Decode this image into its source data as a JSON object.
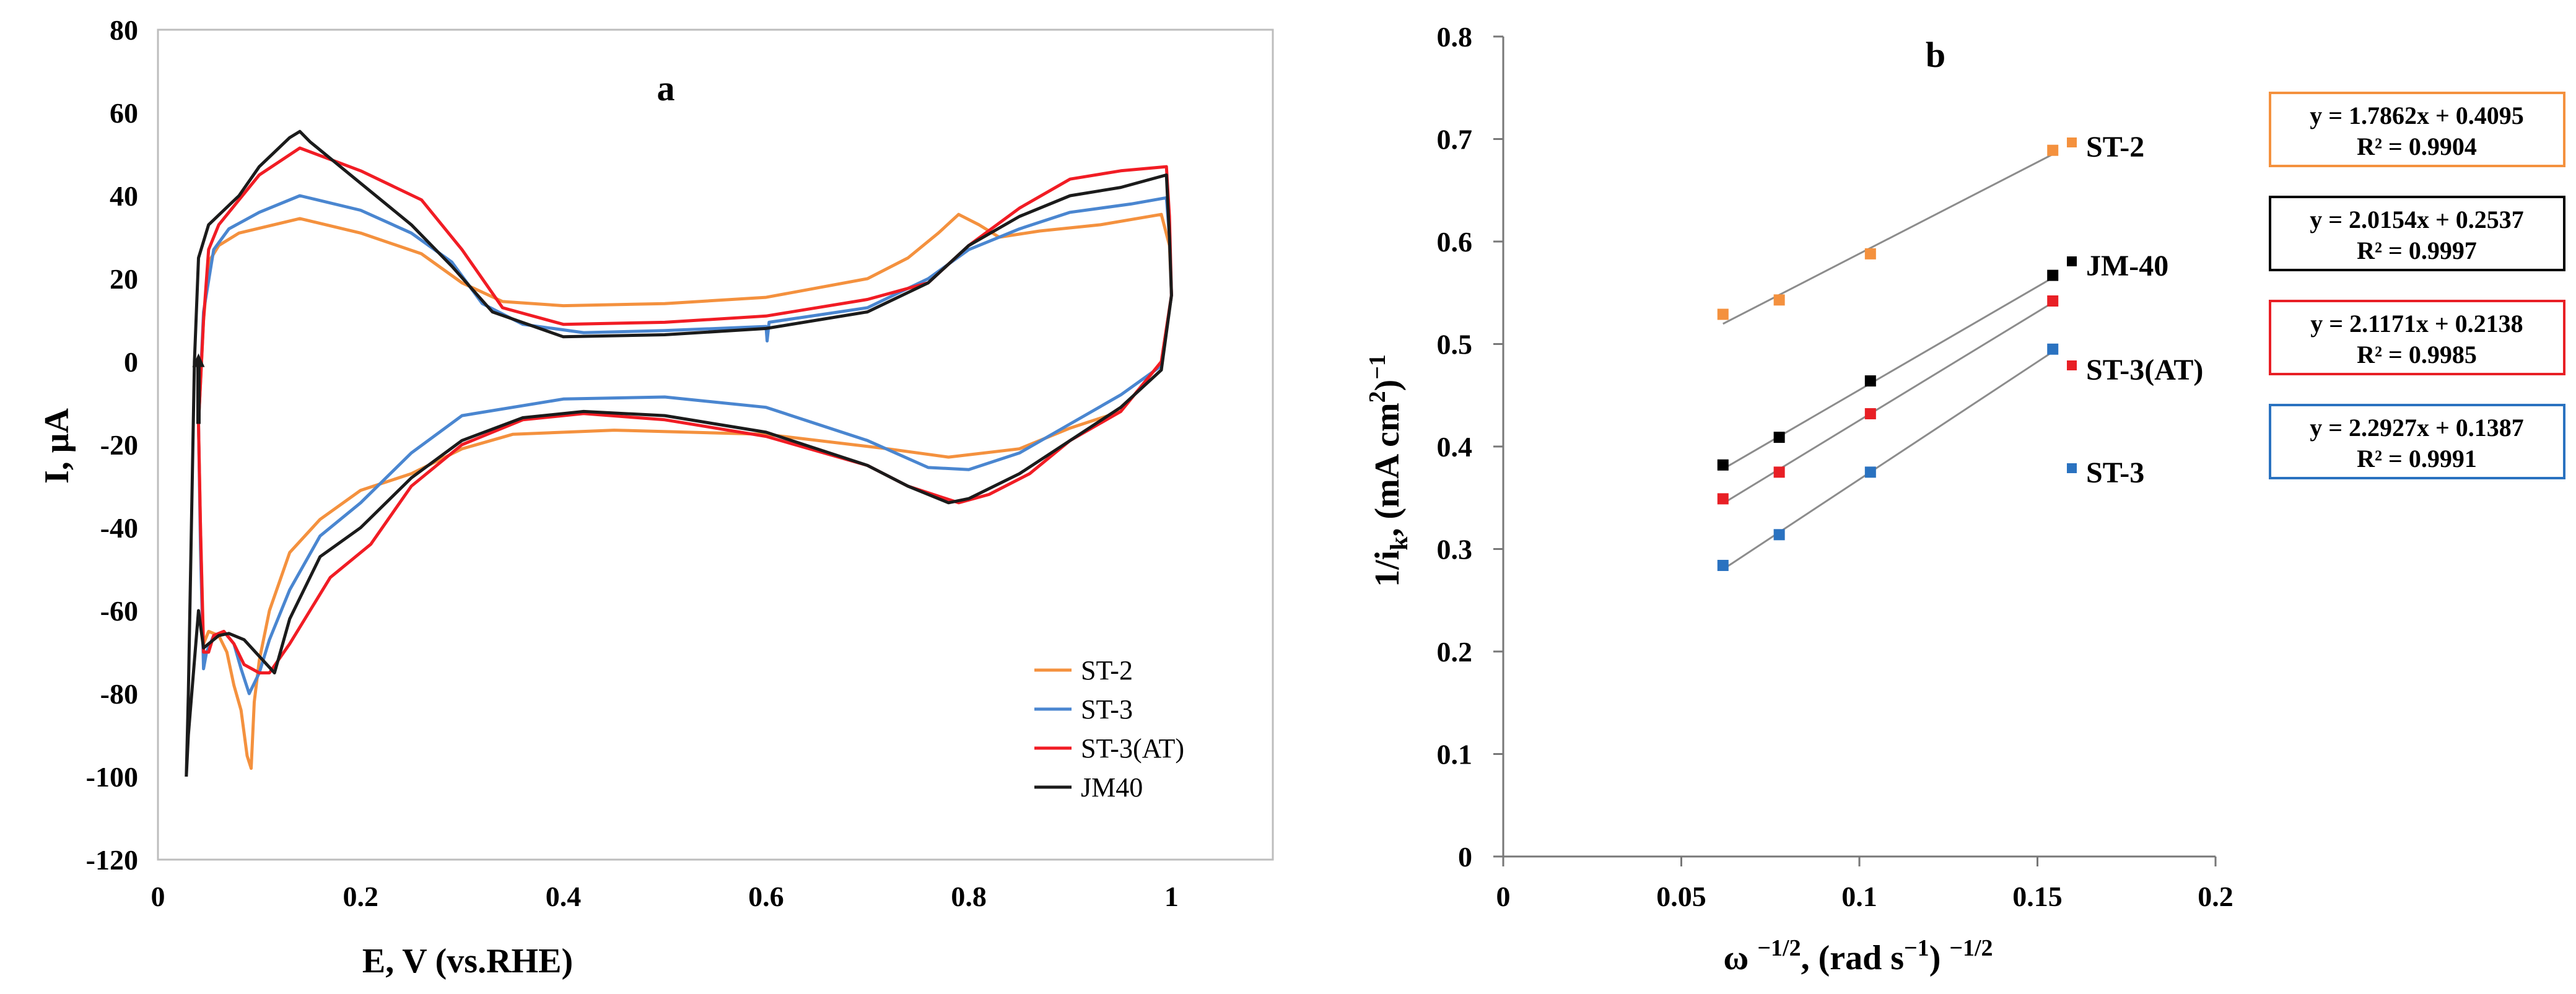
{
  "chart_data": [
    {
      "type": "line",
      "panel_label": "a",
      "xlabel": "E, V (vs.RHE)",
      "ylabel": "I, μA",
      "xlim": [
        0,
        1.1
      ],
      "ylim": [
        -120,
        80
      ],
      "xticks": [
        0,
        0.2,
        0.4,
        0.6,
        0.8,
        1
      ],
      "xtick_labels": [
        "0",
        "0.2",
        "0.4",
        "0.6",
        "0.8",
        "1"
      ],
      "yticks": [
        -120,
        -100,
        -80,
        -60,
        -40,
        -20,
        0,
        20,
        40,
        60,
        80
      ],
      "ytick_labels": [
        "-120",
        "-100",
        "-80",
        "-60",
        "-40",
        "-20",
        "0",
        "20",
        "40",
        "60",
        "80"
      ],
      "legend_position": "bottom-right",
      "series": [
        {
          "name": "ST-2",
          "color": "#f4913e",
          "points": [
            [
              0.04,
              -15
            ],
            [
              0.045,
              10
            ],
            [
              0.05,
              24
            ],
            [
              0.06,
              28
            ],
            [
              0.08,
              31
            ],
            [
              0.14,
              34.5
            ],
            [
              0.2,
              31
            ],
            [
              0.26,
              26
            ],
            [
              0.3,
              19
            ],
            [
              0.34,
              14.5
            ],
            [
              0.4,
              13.5
            ],
            [
              0.5,
              14
            ],
            [
              0.6,
              15.5
            ],
            [
              0.7,
              20
            ],
            [
              0.74,
              25
            ],
            [
              0.77,
              31
            ],
            [
              0.79,
              35.5
            ],
            [
              0.81,
              33
            ],
            [
              0.83,
              30
            ],
            [
              0.87,
              31.5
            ],
            [
              0.93,
              33
            ],
            [
              0.99,
              35.5
            ],
            [
              0.998,
              28
            ],
            [
              1.0,
              16
            ],
            [
              0.99,
              0
            ],
            [
              0.95,
              -12
            ],
            [
              0.9,
              -16
            ],
            [
              0.85,
              -21
            ],
            [
              0.78,
              -23
            ],
            [
              0.72,
              -21
            ],
            [
              0.6,
              -17.5
            ],
            [
              0.45,
              -16.5
            ],
            [
              0.35,
              -17.5
            ],
            [
              0.3,
              -21
            ],
            [
              0.25,
              -27
            ],
            [
              0.2,
              -31
            ],
            [
              0.16,
              -38
            ],
            [
              0.13,
              -46
            ],
            [
              0.11,
              -60
            ],
            [
              0.1,
              -72
            ],
            [
              0.095,
              -82
            ],
            [
              0.092,
              -98
            ],
            [
              0.088,
              -95
            ],
            [
              0.082,
              -84
            ],
            [
              0.075,
              -78
            ],
            [
              0.068,
              -70
            ],
            [
              0.06,
              -66
            ],
            [
              0.05,
              -65
            ],
            [
              0.045,
              -68
            ],
            [
              0.042,
              -40
            ],
            [
              0.04,
              -15
            ]
          ]
        },
        {
          "name": "ST-3",
          "color": "#4a86d0",
          "points": [
            [
              0.04,
              -15
            ],
            [
              0.045,
              12
            ],
            [
              0.055,
              27
            ],
            [
              0.07,
              32
            ],
            [
              0.1,
              36
            ],
            [
              0.14,
              40
            ],
            [
              0.2,
              36.5
            ],
            [
              0.25,
              31
            ],
            [
              0.29,
              24
            ],
            [
              0.32,
              14
            ],
            [
              0.36,
              9
            ],
            [
              0.42,
              7
            ],
            [
              0.5,
              7.5
            ],
            [
              0.6,
              8.5
            ],
            [
              0.601,
              5
            ],
            [
              0.603,
              9.5
            ],
            [
              0.7,
              13
            ],
            [
              0.76,
              20
            ],
            [
              0.8,
              27
            ],
            [
              0.85,
              32
            ],
            [
              0.9,
              36
            ],
            [
              0.96,
              38
            ],
            [
              0.995,
              39.5
            ],
            [
              0.998,
              30
            ],
            [
              1.0,
              16
            ],
            [
              0.99,
              -1
            ],
            [
              0.95,
              -8
            ],
            [
              0.9,
              -15
            ],
            [
              0.85,
              -22
            ],
            [
              0.8,
              -26
            ],
            [
              0.76,
              -25.5
            ],
            [
              0.7,
              -19
            ],
            [
              0.6,
              -11
            ],
            [
              0.5,
              -8.5
            ],
            [
              0.4,
              -9
            ],
            [
              0.3,
              -13
            ],
            [
              0.25,
              -22
            ],
            [
              0.2,
              -34
            ],
            [
              0.16,
              -42
            ],
            [
              0.13,
              -55
            ],
            [
              0.11,
              -67
            ],
            [
              0.1,
              -75
            ],
            [
              0.09,
              -80
            ],
            [
              0.082,
              -74
            ],
            [
              0.075,
              -68
            ],
            [
              0.065,
              -65
            ],
            [
              0.055,
              -66
            ],
            [
              0.048,
              -70
            ],
            [
              0.045,
              -74
            ],
            [
              0.042,
              -45
            ],
            [
              0.04,
              -15
            ]
          ]
        },
        {
          "name": "ST-3(AT)",
          "color": "#f11c24",
          "points": [
            [
              0.04,
              -15
            ],
            [
              0.045,
              10
            ],
            [
              0.05,
              27
            ],
            [
              0.06,
              33
            ],
            [
              0.08,
              39
            ],
            [
              0.1,
              45
            ],
            [
              0.14,
              51.5
            ],
            [
              0.2,
              46
            ],
            [
              0.26,
              39
            ],
            [
              0.3,
              27
            ],
            [
              0.34,
              13
            ],
            [
              0.4,
              9
            ],
            [
              0.5,
              9.5
            ],
            [
              0.6,
              11
            ],
            [
              0.7,
              15
            ],
            [
              0.76,
              19
            ],
            [
              0.8,
              28
            ],
            [
              0.85,
              37
            ],
            [
              0.9,
              44
            ],
            [
              0.95,
              46
            ],
            [
              0.995,
              47
            ],
            [
              0.998,
              35
            ],
            [
              1.0,
              16
            ],
            [
              0.99,
              0
            ],
            [
              0.95,
              -12
            ],
            [
              0.9,
              -19
            ],
            [
              0.86,
              -27
            ],
            [
              0.82,
              -32
            ],
            [
              0.79,
              -34
            ],
            [
              0.74,
              -30
            ],
            [
              0.7,
              -25
            ],
            [
              0.6,
              -18
            ],
            [
              0.5,
              -14
            ],
            [
              0.42,
              -12.5
            ],
            [
              0.36,
              -14
            ],
            [
              0.3,
              -20
            ],
            [
              0.25,
              -30
            ],
            [
              0.21,
              -44
            ],
            [
              0.17,
              -52
            ],
            [
              0.13,
              -68
            ],
            [
              0.11,
              -75
            ],
            [
              0.1,
              -75
            ],
            [
              0.085,
              -73
            ],
            [
              0.075,
              -68
            ],
            [
              0.065,
              -65
            ],
            [
              0.055,
              -66
            ],
            [
              0.05,
              -70
            ],
            [
              0.045,
              -70
            ],
            [
              0.042,
              -40
            ],
            [
              0.04,
              -15
            ]
          ]
        },
        {
          "name": "JM40",
          "color": "#1b1b1b",
          "points": [
            [
              0.028,
              -100
            ],
            [
              0.03,
              -80
            ],
            [
              0.033,
              -40
            ],
            [
              0.036,
              0
            ],
            [
              0.04,
              25
            ],
            [
              0.05,
              33
            ],
            [
              0.08,
              40
            ],
            [
              0.1,
              47
            ],
            [
              0.13,
              54
            ],
            [
              0.14,
              55.5
            ],
            [
              0.15,
              53
            ],
            [
              0.2,
              43
            ],
            [
              0.25,
              33
            ],
            [
              0.29,
              23
            ],
            [
              0.33,
              12
            ],
            [
              0.4,
              6
            ],
            [
              0.5,
              6.5
            ],
            [
              0.6,
              8
            ],
            [
              0.7,
              12
            ],
            [
              0.76,
              19
            ],
            [
              0.8,
              28
            ],
            [
              0.85,
              35
            ],
            [
              0.9,
              40
            ],
            [
              0.95,
              42
            ],
            [
              0.995,
              45
            ],
            [
              0.998,
              30
            ],
            [
              1.0,
              16
            ],
            [
              0.99,
              -2
            ],
            [
              0.95,
              -11
            ],
            [
              0.9,
              -19
            ],
            [
              0.85,
              -27
            ],
            [
              0.8,
              -33
            ],
            [
              0.78,
              -34
            ],
            [
              0.74,
              -30
            ],
            [
              0.7,
              -25
            ],
            [
              0.6,
              -17
            ],
            [
              0.5,
              -13
            ],
            [
              0.42,
              -12
            ],
            [
              0.36,
              -13.5
            ],
            [
              0.3,
              -19
            ],
            [
              0.25,
              -28
            ],
            [
              0.2,
              -40
            ],
            [
              0.16,
              -47
            ],
            [
              0.13,
              -62
            ],
            [
              0.115,
              -75
            ],
            [
              0.1,
              -71
            ],
            [
              0.085,
              -67
            ],
            [
              0.07,
              -65.5
            ],
            [
              0.06,
              -66
            ],
            [
              0.05,
              -68
            ],
            [
              0.045,
              -69
            ],
            [
              0.04,
              -60
            ],
            [
              0.035,
              -75
            ],
            [
              0.03,
              -90
            ],
            [
              0.028,
              -100
            ]
          ]
        }
      ],
      "annotations": [
        {
          "type": "arrow",
          "color": "#1b1b1b",
          "from": [
            0.04,
            -15
          ],
          "to": [
            0.04,
            2
          ]
        }
      ]
    },
    {
      "type": "scatter",
      "panel_label": "b",
      "xlabel": "ω −1/2, (rad s−1) −1/2",
      "ylabel": "1/ik, (mA cm2)−1",
      "xlim": [
        0,
        0.2
      ],
      "ylim": [
        0,
        0.8
      ],
      "xticks": [
        0,
        0.05,
        0.1,
        0.15,
        0.2
      ],
      "xtick_labels": [
        "0",
        "0.05",
        "0.1",
        "0.15",
        "0.2"
      ],
      "yticks": [
        0,
        0.1,
        0.2,
        0.3,
        0.4,
        0.5,
        0.6,
        0.7,
        0.8
      ],
      "ytick_labels": [
        "0",
        "0.1",
        "0.2",
        "0.3",
        "0.4",
        "0.5",
        "0.6",
        "0.7",
        "0.8"
      ],
      "x": [
        0.0617,
        0.0775,
        0.1031,
        0.1543
      ],
      "series": [
        {
          "name": "ST-2",
          "color": "#f4913e",
          "y": [
            0.529,
            0.543,
            0.588,
            0.689
          ],
          "fit_slope": 1.7862,
          "fit_intercept": 0.4095,
          "equation": "y = 1.7862x + 0.4095",
          "r2": "R² = 0.9904"
        },
        {
          "name": "JM-40",
          "color": "#000000",
          "y": [
            0.382,
            0.409,
            0.464,
            0.567
          ],
          "fit_slope": 2.0154,
          "fit_intercept": 0.2537,
          "equation": "y = 2.0154x + 0.2537",
          "r2": "R² = 0.9997"
        },
        {
          "name": "ST-3(AT)",
          "color": "#e81f25",
          "y": [
            0.349,
            0.375,
            0.432,
            0.542
          ],
          "fit_slope": 2.1171,
          "fit_intercept": 0.2138,
          "equation": "y = 2.1171x + 0.2138",
          "r2": "R² = 0.9985"
        },
        {
          "name": "ST-3",
          "color": "#2a72c0",
          "y": [
            0.284,
            0.314,
            0.375,
            0.495
          ],
          "fit_slope": 2.2927,
          "fit_intercept": 0.1387,
          "equation": "y = 2.2927x + 0.1387",
          "r2": "R² = 0.9991"
        }
      ]
    }
  ]
}
